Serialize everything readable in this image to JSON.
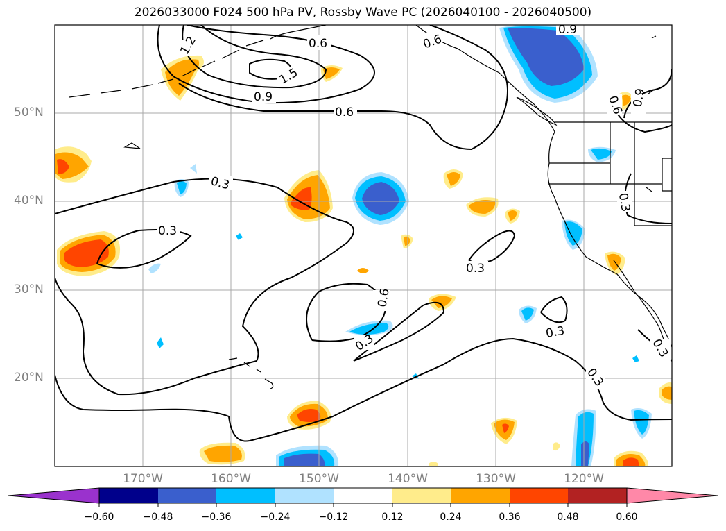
{
  "title": "2026033000 F024 500 hPa PV, Rossby Wave PC (2026040100 - 2026040500)",
  "lat_labels": [
    "50°N",
    "40°N",
    "30°N",
    "20°N"
  ],
  "lon_labels": [
    "170°W",
    "160°W",
    "150°W",
    "140°W",
    "130°W",
    "120°W"
  ],
  "contour_labels": [
    "1.2",
    "0.6",
    "1.5",
    "0.9",
    "0.6",
    "0.6",
    "0.6",
    "0.9",
    "0.3",
    "0.3",
    "0.3",
    "0.6",
    "0.3",
    "0.3",
    "0.3",
    "0.3",
    "0.3",
    "0.9"
  ],
  "colorbar": {
    "ticks": [
      "−0.60",
      "−0.48",
      "−0.36",
      "−0.24",
      "−0.12",
      "0.12",
      "0.24",
      "0.36",
      "0.48",
      "0.60"
    ],
    "colors": [
      "#9a32cd",
      "#00008b",
      "#3a5fcd",
      "#00bfff",
      "#b0e2ff",
      "#ffffff",
      "#ffec8b",
      "#ffa500",
      "#ff4500",
      "#b22222",
      "#ff88a8"
    ]
  },
  "colors": {
    "map_bg": "#ffffff",
    "grid": "#a9a9a9",
    "coast": "#000000",
    "pos_light": "#ffec8b",
    "pos_mid": "#ffa500",
    "pos_strong": "#ff4500",
    "neg_light": "#b0e2ff",
    "neg_mid": "#00bfff",
    "neg_strong": "#3a5fcd"
  }
}
